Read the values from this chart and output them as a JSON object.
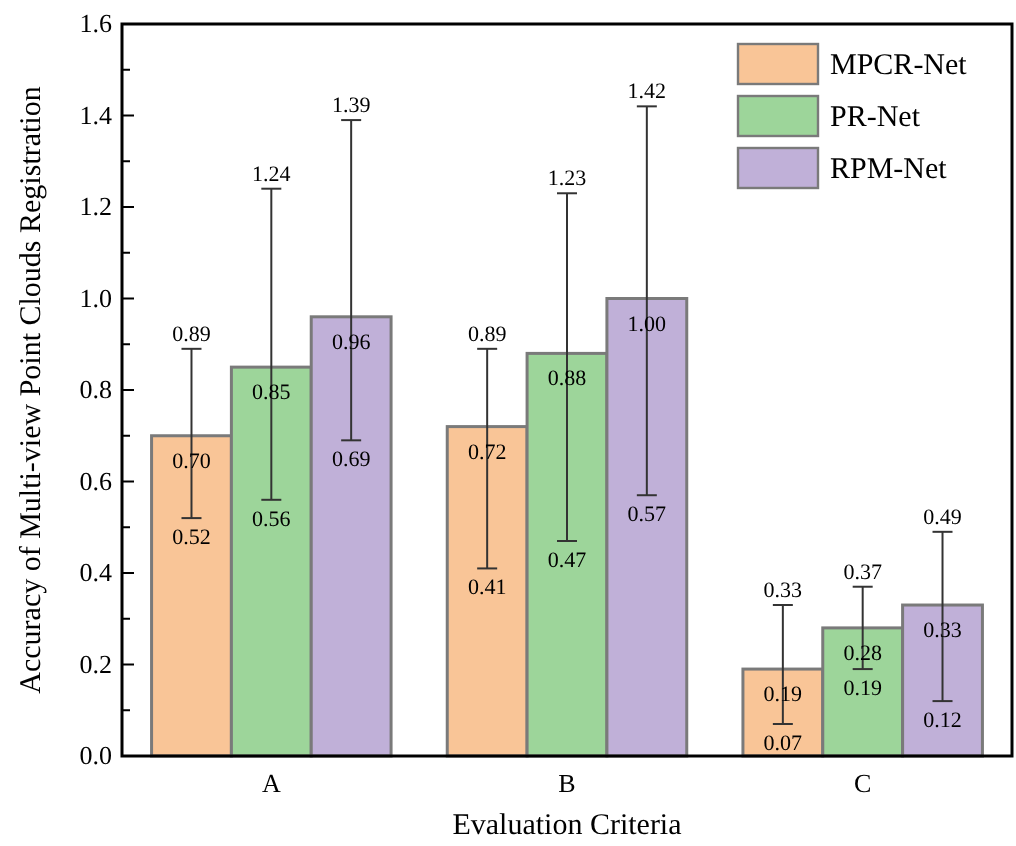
{
  "chart_data": {
    "type": "bar",
    "xlabel": "Evaluation Criteria",
    "ylabel": "Accuracy of Multi-view Point Clouds Registration",
    "categories": [
      "A",
      "B",
      "C"
    ],
    "series": [
      {
        "name": "MPCR-Net",
        "color": "#f9c597",
        "values": [
          0.7,
          0.72,
          0.19
        ],
        "errors": [
          [
            0.52,
            0.89
          ],
          [
            0.41,
            0.89
          ],
          [
            0.07,
            0.33
          ]
        ],
        "value_labels": [
          "0.70",
          "0.72",
          "0.19"
        ]
      },
      {
        "name": "PR-Net",
        "color": "#9dd59a",
        "values": [
          0.85,
          0.88,
          0.28
        ],
        "errors": [
          [
            0.56,
            1.24
          ],
          [
            0.47,
            1.23
          ],
          [
            0.19,
            0.37
          ]
        ],
        "value_labels": [
          "0.85",
          "0.88",
          "0.28"
        ]
      },
      {
        "name": "RPM-Net",
        "color": "#c0b0d8",
        "values": [
          0.96,
          1.0,
          0.33
        ],
        "errors": [
          [
            0.69,
            1.39
          ],
          [
            0.57,
            1.42
          ],
          [
            0.12,
            0.49
          ]
        ],
        "value_labels": [
          "0.96",
          "1.00",
          "0.33"
        ]
      }
    ],
    "ylim": [
      0,
      1.6
    ],
    "yticks": [
      {
        "value": 0,
        "label": "0.0"
      },
      {
        "value": 0.1,
        "label": null
      },
      {
        "value": 0.2,
        "label": "0.2"
      },
      {
        "value": 0.3,
        "label": null
      },
      {
        "value": 0.4,
        "label": "0.4"
      },
      {
        "value": 0.5,
        "label": null
      },
      {
        "value": 0.6,
        "label": "0.6"
      },
      {
        "value": 0.7,
        "label": null
      },
      {
        "value": 0.8,
        "label": "0.8"
      },
      {
        "value": 0.9,
        "label": null
      },
      {
        "value": 1.0,
        "label": "1.0"
      },
      {
        "value": 1.1,
        "label": null
      },
      {
        "value": 1.2,
        "label": "1.2"
      },
      {
        "value": 1.3,
        "label": null
      },
      {
        "value": 1.4,
        "label": "1.4"
      },
      {
        "value": 1.5,
        "label": null
      },
      {
        "value": 1.6,
        "label": "1.6"
      }
    ],
    "annotations": [
      "0.89",
      "0.52",
      "1.24",
      "0.56",
      "1.39",
      "0.69",
      "0.89",
      "0.41",
      "1.23",
      "0.47",
      "1.42",
      "0.57",
      "0.33",
      "0.07",
      "0.37",
      "0.19",
      "0.49",
      "0.12"
    ],
    "legend": "top right",
    "grid": false
  }
}
